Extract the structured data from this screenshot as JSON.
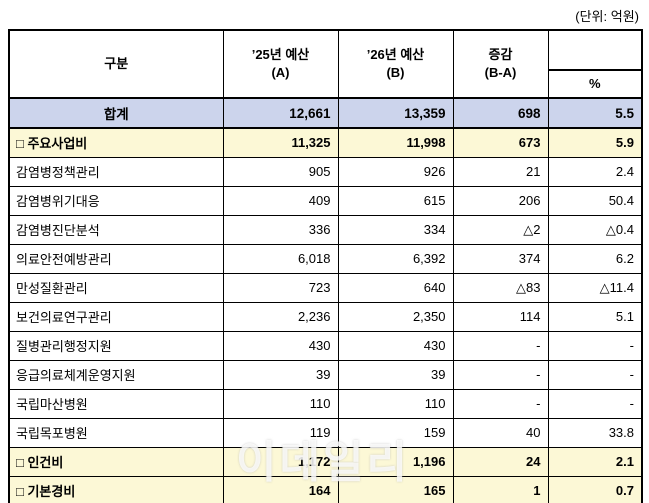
{
  "unit_label": "(단위: 억원)",
  "header": {
    "category": "구분",
    "col_a_line1": "’25년 예산",
    "col_a_line2": "(A)",
    "col_b_line1": "’26년 예산",
    "col_b_line2": "(B)",
    "col_diff_line1": "증감",
    "col_diff_line2": "(B-A)",
    "col_pct": "%"
  },
  "watermark": "이데일리",
  "colors": {
    "total_row_bg": "#ccd4ec",
    "section_row_bg": "#fcf8d6",
    "border": "#000000"
  },
  "chart_data": {
    "type": "table",
    "title": "",
    "unit": "억원",
    "columns": [
      "구분",
      "’25년 예산 (A)",
      "’26년 예산 (B)",
      "증감 (B-A)",
      "%"
    ],
    "rows": [
      {
        "style": "total",
        "label": "합계",
        "a": "12,661",
        "b": "13,359",
        "diff": "698",
        "pct": "5.5"
      },
      {
        "style": "section",
        "label": "□ 주요사업비",
        "a": "11,325",
        "b": "11,998",
        "diff": "673",
        "pct": "5.9"
      },
      {
        "style": "normal",
        "label": "감염병정책관리",
        "a": "905",
        "b": "926",
        "diff": "21",
        "pct": "2.4"
      },
      {
        "style": "normal",
        "label": "감염병위기대응",
        "a": "409",
        "b": "615",
        "diff": "206",
        "pct": "50.4"
      },
      {
        "style": "normal",
        "label": "감염병진단분석",
        "a": "336",
        "b": "334",
        "diff": "△2",
        "pct": "△0.4"
      },
      {
        "style": "normal",
        "label": "의료안전예방관리",
        "a": "6,018",
        "b": "6,392",
        "diff": "374",
        "pct": "6.2"
      },
      {
        "style": "normal",
        "label": "만성질환관리",
        "a": "723",
        "b": "640",
        "diff": "△83",
        "pct": "△11.4"
      },
      {
        "style": "normal",
        "label": "보건의료연구관리",
        "a": "2,236",
        "b": "2,350",
        "diff": "114",
        "pct": "5.1"
      },
      {
        "style": "normal",
        "label": "질병관리행정지원",
        "a": "430",
        "b": "430",
        "diff": "-",
        "pct": "-"
      },
      {
        "style": "normal",
        "label": "응급의료체계운영지원",
        "a": "39",
        "b": "39",
        "diff": "-",
        "pct": "-"
      },
      {
        "style": "normal",
        "label": "국립마산병원",
        "a": "110",
        "b": "110",
        "diff": "-",
        "pct": "-"
      },
      {
        "style": "normal",
        "label": "국립목포병원",
        "a": "119",
        "b": "159",
        "diff": "40",
        "pct": "33.8"
      },
      {
        "style": "section",
        "label": "□ 인건비",
        "a": "1,172",
        "b": "1,196",
        "diff": "24",
        "pct": "2.1"
      },
      {
        "style": "section",
        "label": "□ 기본경비",
        "a": "164",
        "b": "165",
        "diff": "1",
        "pct": "0.7"
      }
    ]
  }
}
